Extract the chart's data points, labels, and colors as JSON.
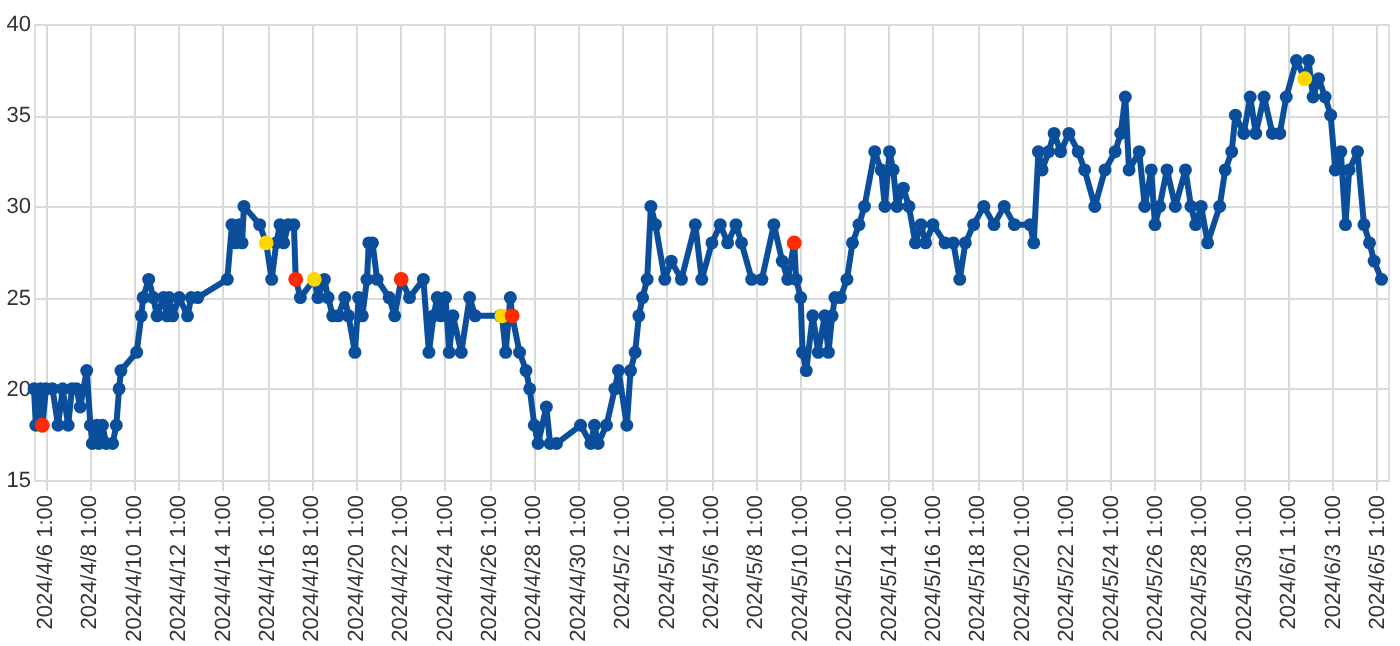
{
  "chart_data": {
    "type": "line",
    "grid": true,
    "marker": "circle",
    "line_style": "solid",
    "legend": false,
    "xlim": [
      "2024-04-05T13:00",
      "2024-06-05T13:00"
    ],
    "ylim": [
      15,
      40
    ],
    "yticks": [
      15,
      20,
      25,
      30,
      35,
      40
    ],
    "xticks": [
      {
        "value": "2024-04-06T01:00",
        "label": "2024/4/6 1:00"
      },
      {
        "value": "2024-04-08T01:00",
        "label": "2024/4/8 1:00"
      },
      {
        "value": "2024-04-10T01:00",
        "label": "2024/4/10 1:00"
      },
      {
        "value": "2024-04-12T01:00",
        "label": "2024/4/12 1:00"
      },
      {
        "value": "2024-04-14T01:00",
        "label": "2024/4/14 1:00"
      },
      {
        "value": "2024-04-16T01:00",
        "label": "2024/4/16 1:00"
      },
      {
        "value": "2024-04-18T01:00",
        "label": "2024/4/18 1:00"
      },
      {
        "value": "2024-04-20T01:00",
        "label": "2024/4/20 1:00"
      },
      {
        "value": "2024-04-22T01:00",
        "label": "2024/4/22 1:00"
      },
      {
        "value": "2024-04-24T01:00",
        "label": "2024/4/24 1:00"
      },
      {
        "value": "2024-04-26T01:00",
        "label": "2024/4/26 1:00"
      },
      {
        "value": "2024-04-28T01:00",
        "label": "2024/4/28 1:00"
      },
      {
        "value": "2024-04-30T01:00",
        "label": "2024/4/30 1:00"
      },
      {
        "value": "2024-05-02T01:00",
        "label": "2024/5/2 1:00"
      },
      {
        "value": "2024-05-04T01:00",
        "label": "2024/5/4 1:00"
      },
      {
        "value": "2024-05-06T01:00",
        "label": "2024/5/6 1:00"
      },
      {
        "value": "2024-05-08T01:00",
        "label": "2024/5/8 1:00"
      },
      {
        "value": "2024-05-10T01:00",
        "label": "2024/5/10 1:00"
      },
      {
        "value": "2024-05-12T01:00",
        "label": "2024/5/12 1:00"
      },
      {
        "value": "2024-05-14T01:00",
        "label": "2024/5/14 1:00"
      },
      {
        "value": "2024-05-16T01:00",
        "label": "2024/5/16 1:00"
      },
      {
        "value": "2024-05-18T01:00",
        "label": "2024/5/18 1:00"
      },
      {
        "value": "2024-05-20T01:00",
        "label": "2024/5/20 1:00"
      },
      {
        "value": "2024-05-22T01:00",
        "label": "2024/5/22 1:00"
      },
      {
        "value": "2024-05-24T01:00",
        "label": "2024/5/24 1:00"
      },
      {
        "value": "2024-05-26T01:00",
        "label": "2024/5/26 1:00"
      },
      {
        "value": "2024-05-28T01:00",
        "label": "2024/5/28 1:00"
      },
      {
        "value": "2024-05-30T01:00",
        "label": "2024/5/30 1:00"
      },
      {
        "value": "2024-06-01T01:00",
        "label": "2024/6/1 1:00"
      },
      {
        "value": "2024-06-03T01:00",
        "label": "2024/6/3 1:00"
      },
      {
        "value": "2024-06-05T01:00",
        "label": "2024/6/5 1:00"
      }
    ],
    "series": [
      {
        "type": "line",
        "color": "#0b4f9c",
        "x": [
          "2024-04-05T13:00",
          "2024-04-05T15:00",
          "2024-04-05T20:00",
          "2024-04-05T22:00",
          "2024-04-06T02:00",
          "2024-04-06T09:00",
          "2024-04-06T15:00",
          "2024-04-06T20:00",
          "2024-04-07T02:00",
          "2024-04-07T06:00",
          "2024-04-07T11:00",
          "2024-04-07T15:00",
          "2024-04-07T22:00",
          "2024-04-08T02:00",
          "2024-04-08T04:00",
          "2024-04-08T09:00",
          "2024-04-08T11:00",
          "2024-04-08T15:00",
          "2024-04-08T19:00",
          "2024-04-09T02:00",
          "2024-04-09T06:00",
          "2024-04-09T09:00",
          "2024-04-09T11:00",
          "2024-04-10T04:00",
          "2024-04-10T09:00",
          "2024-04-10T11:00",
          "2024-04-10T17:00",
          "2024-04-10T22:00",
          "2024-04-11T02:00",
          "2024-04-11T09:00",
          "2024-04-11T13:00",
          "2024-04-11T15:00",
          "2024-04-11T19:00",
          "2024-04-12T02:00",
          "2024-04-12T11:00",
          "2024-04-12T15:00",
          "2024-04-12T22:00",
          "2024-04-14T06:00",
          "2024-04-14T11:00",
          "2024-04-14T15:00",
          "2024-04-14T19:00",
          "2024-04-14T22:00",
          "2024-04-15T00:00",
          "2024-04-15T17:00",
          "2024-04-16T00:00",
          "2024-04-16T06:00",
          "2024-04-16T11:00",
          "2024-04-16T15:00",
          "2024-04-16T19:00",
          "2024-04-17T00:00",
          "2024-04-17T06:00",
          "2024-04-17T08:00",
          "2024-04-17T13:00",
          "2024-04-18T04:00",
          "2024-04-18T08:00",
          "2024-04-18T15:00",
          "2024-04-18T19:00",
          "2024-04-19T00:00",
          "2024-04-19T06:00",
          "2024-04-19T13:00",
          "2024-04-19T17:00",
          "2024-04-20T00:00",
          "2024-04-20T04:00",
          "2024-04-20T08:00",
          "2024-04-20T13:00",
          "2024-04-20T15:00",
          "2024-04-20T19:00",
          "2024-04-21T00:00",
          "2024-04-21T13:00",
          "2024-04-21T19:00",
          "2024-04-22T02:00",
          "2024-04-22T11:00",
          "2024-04-23T02:00",
          "2024-04-23T08:00",
          "2024-04-23T13:00",
          "2024-04-23T17:00",
          "2024-04-23T21:00",
          "2024-04-24T02:00",
          "2024-04-24T06:00",
          "2024-04-24T10:00",
          "2024-04-24T19:00",
          "2024-04-25T04:00",
          "2024-04-25T10:00",
          "2024-04-26T13:00",
          "2024-04-26T15:00",
          "2024-04-26T19:00",
          "2024-04-27T00:00",
          "2024-04-27T02:00",
          "2024-04-27T10:00",
          "2024-04-27T17:00",
          "2024-04-27T21:00",
          "2024-04-28T02:00",
          "2024-04-28T06:00",
          "2024-04-28T15:00",
          "2024-04-28T19:00",
          "2024-04-29T02:00",
          "2024-04-30T04:00",
          "2024-04-30T15:00",
          "2024-04-30T19:00",
          "2024-04-30T23:00",
          "2024-05-01T08:00",
          "2024-05-01T17:00",
          "2024-05-01T21:00",
          "2024-05-02T06:00",
          "2024-05-02T10:00",
          "2024-05-02T15:00",
          "2024-05-02T19:00",
          "2024-05-02T23:00",
          "2024-05-03T04:00",
          "2024-05-03T08:00",
          "2024-05-03T13:00",
          "2024-05-03T23:00",
          "2024-05-04T06:00",
          "2024-05-04T17:00",
          "2024-05-05T08:00",
          "2024-05-05T15:00",
          "2024-05-06T02:00",
          "2024-05-06T11:00",
          "2024-05-06T19:00",
          "2024-05-07T04:00",
          "2024-05-07T10:00",
          "2024-05-07T21:00",
          "2024-05-08T08:00",
          "2024-05-08T21:00",
          "2024-05-09T06:00",
          "2024-05-09T12:00",
          "2024-05-09T19:00",
          "2024-05-09T21:00",
          "2024-05-10T02:00",
          "2024-05-10T04:00",
          "2024-05-10T08:00",
          "2024-05-10T15:00",
          "2024-05-10T21:00",
          "2024-05-11T04:00",
          "2024-05-11T08:00",
          "2024-05-11T12:00",
          "2024-05-11T15:00",
          "2024-05-11T21:00",
          "2024-05-12T04:00",
          "2024-05-12T10:00",
          "2024-05-12T17:00",
          "2024-05-12T23:00",
          "2024-05-13T10:00",
          "2024-05-13T17:00",
          "2024-05-13T21:00",
          "2024-05-14T02:00",
          "2024-05-14T06:00",
          "2024-05-14T10:00",
          "2024-05-14T17:00",
          "2024-05-14T23:00",
          "2024-05-15T06:00",
          "2024-05-15T12:00",
          "2024-05-15T17:00",
          "2024-05-16T01:00",
          "2024-05-16T14:00",
          "2024-05-16T23:00",
          "2024-05-17T06:00",
          "2024-05-17T12:00",
          "2024-05-17T21:00",
          "2024-05-18T08:00",
          "2024-05-18T19:00",
          "2024-05-19T06:00",
          "2024-05-19T17:00",
          "2024-05-20T10:00",
          "2024-05-20T14:00",
          "2024-05-20T19:00",
          "2024-05-20T23:00",
          "2024-05-21T06:00",
          "2024-05-21T12:00",
          "2024-05-21T19:00",
          "2024-05-22T04:00",
          "2024-05-22T14:00",
          "2024-05-22T21:00",
          "2024-05-23T08:00",
          "2024-05-23T19:00",
          "2024-05-24T06:00",
          "2024-05-24T12:00",
          "2024-05-24T17:00",
          "2024-05-24T21:00",
          "2024-05-25T08:00",
          "2024-05-25T14:00",
          "2024-05-25T21:00",
          "2024-05-26T01:00",
          "2024-05-26T06:00",
          "2024-05-26T14:00",
          "2024-05-26T23:00",
          "2024-05-27T10:00",
          "2024-05-27T16:00",
          "2024-05-27T21:00",
          "2024-05-28T03:00",
          "2024-05-28T10:00",
          "2024-05-28T23:00",
          "2024-05-29T05:00",
          "2024-05-29T12:00",
          "2024-05-29T16:00",
          "2024-05-30T01:00",
          "2024-05-30T08:00",
          "2024-05-30T14:00",
          "2024-05-30T23:00",
          "2024-05-31T08:00",
          "2024-05-31T16:00",
          "2024-05-31T23:00",
          "2024-06-01T10:00",
          "2024-06-01T19:00",
          "2024-06-01T23:00",
          "2024-06-02T04:00",
          "2024-06-02T10:00",
          "2024-06-02T17:00",
          "2024-06-02T23:00",
          "2024-06-03T04:00",
          "2024-06-03T10:00",
          "2024-06-03T15:00",
          "2024-06-03T19:00",
          "2024-06-04T04:00",
          "2024-06-04T11:00",
          "2024-06-04T17:00",
          "2024-06-04T22:00",
          "2024-06-05T06:00"
        ],
        "values": [
          20,
          18,
          20,
          18,
          20,
          20,
          18,
          20,
          18,
          20,
          20,
          19,
          21,
          18,
          17,
          18,
          17,
          18,
          17,
          17,
          18,
          20,
          21,
          22,
          24,
          25,
          26,
          25,
          24,
          25,
          24,
          25,
          24,
          25,
          24,
          25,
          25,
          26,
          29,
          28,
          29,
          28,
          30,
          29,
          28,
          26,
          28,
          29,
          28,
          29,
          29,
          26,
          25,
          26,
          25,
          26,
          25,
          24,
          24,
          25,
          24,
          22,
          25,
          24,
          26,
          28,
          28,
          26,
          25,
          24,
          26,
          25,
          26,
          22,
          24,
          25,
          24,
          25,
          22,
          24,
          22,
          25,
          24,
          24,
          24,
          22,
          25,
          24,
          22,
          21,
          20,
          18,
          17,
          19,
          17,
          17,
          18,
          17,
          18,
          17,
          18,
          20,
          21,
          18,
          21,
          22,
          24,
          25,
          26,
          30,
          29,
          26,
          27,
          26,
          29,
          26,
          28,
          29,
          28,
          29,
          28,
          26,
          26,
          29,
          27,
          26,
          28,
          26,
          25,
          22,
          21,
          24,
          22,
          24,
          22,
          24,
          25,
          25,
          26,
          28,
          29,
          30,
          33,
          32,
          30,
          33,
          32,
          30,
          31,
          30,
          28,
          29,
          28,
          29,
          28,
          28,
          26,
          28,
          29,
          30,
          29,
          30,
          29,
          29,
          28,
          33,
          32,
          33,
          34,
          33,
          34,
          33,
          32,
          30,
          32,
          33,
          34,
          36,
          32,
          33,
          30,
          32,
          29,
          30,
          32,
          30,
          32,
          30,
          29,
          30,
          28,
          30,
          32,
          33,
          35,
          34,
          36,
          34,
          36,
          34,
          34,
          36,
          38,
          37,
          38,
          36,
          37,
          36,
          35,
          32,
          33,
          29,
          32,
          33,
          29,
          28,
          27,
          26
        ]
      },
      {
        "type": "scatter",
        "colors": [
          "#ff2a00",
          "#ffd700",
          "#ff2a00",
          "#ffd700",
          "#ff2a00",
          "#ffd700",
          "#ff2a00",
          "#ff2a00",
          "#ffd700"
        ],
        "x": [
          "2024-04-05T22:00",
          "2024-04-16T00:00",
          "2024-04-17T08:00",
          "2024-04-18T04:00",
          "2024-04-22T02:00",
          "2024-04-26T15:00",
          "2024-04-27T02:00",
          "2024-05-09T19:00",
          "2024-06-01T19:00"
        ],
        "values": [
          18,
          28,
          26,
          26,
          26,
          24,
          24,
          28,
          37
        ]
      }
    ]
  }
}
